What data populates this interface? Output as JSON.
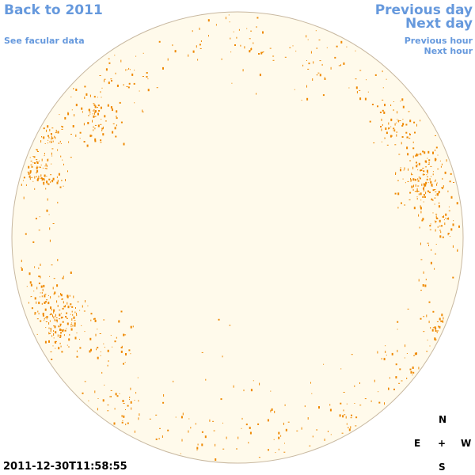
{
  "nav": {
    "back_label": "Back to 2011",
    "facular_label": "See facular data",
    "prev_day_label": "Previous day",
    "next_day_label": "Next day",
    "prev_hour_label": "Previous hour",
    "next_hour_label": "Next hour"
  },
  "compass": {
    "north": "N",
    "south": "S",
    "east": "E",
    "west": "W",
    "center": "+"
  },
  "timestamp": "2011-12-30T11:58:55",
  "colors": {
    "link": "#6699dd",
    "disk_fill": "#fffaeb",
    "disk_stroke": "#c8b8a0",
    "facula": "#ee8800"
  }
}
